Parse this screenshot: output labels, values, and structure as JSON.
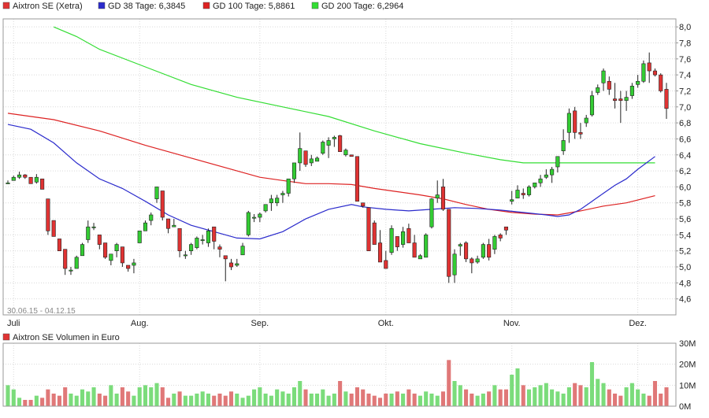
{
  "colors": {
    "up": "#33cc33",
    "down": "#e03333",
    "gd38": "#2a2acc",
    "gd100": "#dd2222",
    "gd200": "#33dd33",
    "volume_up": "#7bdc7b",
    "volume_down": "#e07878"
  },
  "legend": {
    "items": [
      {
        "label": "Aixtron SE (Xetra)",
        "color": "#e03333"
      },
      {
        "label": "GD 38 Tage: 6,3845",
        "color": "#2a2acc"
      },
      {
        "label": "GD 100 Tage: 5,8861",
        "color": "#dd2222"
      },
      {
        "label": "GD 200 Tage: 6,2964",
        "color": "#33dd33"
      }
    ],
    "volume_title": "Aixtron SE Volumen in Euro",
    "volume_color": "#e03333"
  },
  "chart_data": [
    {
      "type": "candlestick",
      "annotation": "30.06.15 - 04.12.15",
      "ylim": [
        4.4,
        8.1
      ],
      "y_ticks": [
        {
          "v": 4.6,
          "label": "4,6"
        },
        {
          "v": 4.8,
          "label": "4,8"
        },
        {
          "v": 5.0,
          "label": "5,0"
        },
        {
          "v": 5.2,
          "label": "5,2"
        },
        {
          "v": 5.4,
          "label": "5,4"
        },
        {
          "v": 5.6,
          "label": "5,6"
        },
        {
          "v": 5.8,
          "label": "5,8"
        },
        {
          "v": 6.0,
          "label": "6,0"
        },
        {
          "v": 6.2,
          "label": "6,2"
        },
        {
          "v": 6.4,
          "label": "6,4"
        },
        {
          "v": 6.6,
          "label": "6,6"
        },
        {
          "v": 6.8,
          "label": "6,8"
        },
        {
          "v": 7.0,
          "label": "7,0"
        },
        {
          "v": 7.2,
          "label": "7,2"
        },
        {
          "v": 7.4,
          "label": "7,4"
        },
        {
          "v": 7.6,
          "label": "7,6"
        },
        {
          "v": 7.8,
          "label": "7,8"
        },
        {
          "v": 8.0,
          "label": "8,0"
        }
      ],
      "x_ticks": [
        {
          "index": 1,
          "label": "Juli"
        },
        {
          "index": 23,
          "label": "Aug."
        },
        {
          "index": 44,
          "label": "Sep."
        },
        {
          "index": 66,
          "label": "Okt."
        },
        {
          "index": 88,
          "label": "Nov."
        },
        {
          "index": 110,
          "label": "Dez."
        }
      ],
      "candles": [
        [
          6.05,
          6.08,
          6.05,
          6.05
        ],
        [
          6.08,
          6.14,
          6.08,
          6.12
        ],
        [
          6.12,
          6.19,
          6.1,
          6.15
        ],
        [
          6.15,
          6.16,
          6.1,
          6.12
        ],
        [
          6.12,
          6.12,
          6.04,
          6.04
        ],
        [
          6.06,
          6.16,
          6.04,
          6.12
        ],
        [
          6.1,
          6.1,
          5.97,
          5.97
        ],
        [
          5.85,
          5.85,
          5.4,
          5.45
        ],
        [
          5.58,
          5.58,
          5.38,
          5.38
        ],
        [
          5.35,
          5.35,
          5.2,
          5.2
        ],
        [
          5.22,
          5.22,
          4.9,
          4.98
        ],
        [
          4.96,
          5.0,
          4.9,
          4.96
        ],
        [
          4.98,
          5.14,
          4.98,
          5.12
        ],
        [
          5.14,
          5.3,
          5.14,
          5.28
        ],
        [
          5.34,
          5.58,
          5.3,
          5.5
        ],
        [
          5.5,
          5.55,
          5.46,
          5.5
        ],
        [
          5.4,
          5.4,
          5.22,
          5.28
        ],
        [
          5.3,
          5.3,
          5.1,
          5.12
        ],
        [
          5.08,
          5.16,
          5.02,
          5.16
        ],
        [
          5.2,
          5.3,
          5.12,
          5.28
        ],
        [
          5.25,
          5.25,
          5.0,
          5.05
        ],
        [
          5.02,
          5.02,
          4.94,
          4.98
        ],
        [
          5.02,
          5.1,
          4.92,
          5.05
        ],
        [
          5.3,
          5.45,
          5.3,
          5.45
        ],
        [
          5.45,
          5.58,
          5.45,
          5.55
        ],
        [
          5.58,
          5.68,
          5.52,
          5.65
        ],
        [
          5.85,
          6.0,
          5.8,
          6.0
        ],
        [
          5.95,
          5.95,
          5.58,
          5.62
        ],
        [
          5.6,
          5.6,
          5.42,
          5.48
        ],
        [
          5.5,
          5.6,
          5.5,
          5.52
        ],
        [
          5.48,
          5.48,
          5.12,
          5.2
        ],
        [
          5.15,
          5.2,
          5.1,
          5.15
        ],
        [
          5.2,
          5.3,
          5.15,
          5.28
        ],
        [
          5.24,
          5.38,
          5.22,
          5.36
        ],
        [
          5.34,
          5.4,
          5.28,
          5.34
        ],
        [
          5.3,
          5.48,
          5.25,
          5.45
        ],
        [
          5.5,
          5.5,
          5.22,
          5.32
        ],
        [
          5.25,
          5.28,
          5.12,
          5.22
        ],
        [
          5.14,
          5.14,
          4.82,
          5.1
        ],
        [
          5.05,
          5.1,
          4.96,
          5.0
        ],
        [
          5.02,
          5.1,
          5.0,
          5.04
        ],
        [
          5.15,
          5.3,
          5.15,
          5.26
        ],
        [
          5.4,
          5.7,
          5.38,
          5.68
        ],
        [
          5.62,
          5.66,
          5.56,
          5.62
        ],
        [
          5.62,
          5.68,
          5.56,
          5.66
        ],
        [
          5.7,
          5.78,
          5.68,
          5.78
        ],
        [
          5.8,
          5.9,
          5.7,
          5.85
        ],
        [
          5.8,
          5.9,
          5.76,
          5.86
        ],
        [
          5.9,
          5.95,
          5.8,
          5.92
        ],
        [
          5.92,
          6.1,
          5.88,
          6.1
        ],
        [
          6.1,
          6.3,
          6.05,
          6.3
        ],
        [
          6.3,
          6.68,
          6.2,
          6.48
        ],
        [
          6.45,
          6.45,
          6.25,
          6.28
        ],
        [
          6.3,
          6.4,
          6.26,
          6.35
        ],
        [
          6.32,
          6.38,
          6.32,
          6.36
        ],
        [
          6.42,
          6.58,
          6.4,
          6.56
        ],
        [
          6.52,
          6.62,
          6.36,
          6.58
        ],
        [
          6.6,
          6.64,
          6.5,
          6.62
        ],
        [
          6.64,
          6.65,
          6.44,
          6.44
        ],
        [
          6.4,
          6.48,
          6.38,
          6.46
        ],
        [
          6.4,
          6.4,
          6.38,
          6.38
        ],
        [
          6.38,
          6.38,
          5.82,
          5.82
        ],
        [
          5.8,
          5.8,
          5.74,
          5.76
        ],
        [
          5.74,
          5.74,
          5.2,
          5.2
        ],
        [
          5.55,
          5.58,
          5.28,
          5.28
        ],
        [
          5.3,
          5.46,
          5.06,
          5.06
        ],
        [
          5.08,
          5.2,
          4.98,
          4.98
        ],
        [
          5.18,
          5.52,
          5.15,
          5.48
        ],
        [
          5.38,
          5.38,
          5.2,
          5.25
        ],
        [
          5.28,
          5.5,
          5.24,
          5.44
        ],
        [
          5.48,
          5.54,
          5.3,
          5.3
        ],
        [
          5.3,
          5.4,
          5.12,
          5.12
        ],
        [
          5.1,
          5.16,
          5.1,
          5.14
        ],
        [
          5.12,
          5.42,
          5.12,
          5.4
        ],
        [
          5.5,
          5.86,
          5.48,
          5.85
        ],
        [
          5.86,
          6.08,
          5.8,
          5.9
        ],
        [
          6.0,
          6.1,
          5.7,
          5.72
        ],
        [
          5.72,
          5.72,
          4.8,
          4.88
        ],
        [
          4.9,
          5.22,
          4.8,
          5.16
        ],
        [
          5.26,
          5.3,
          5.14,
          5.28
        ],
        [
          5.3,
          5.32,
          5.06,
          5.1
        ],
        [
          5.1,
          5.12,
          4.92,
          5.05
        ],
        [
          5.06,
          5.14,
          5.04,
          5.1
        ],
        [
          5.12,
          5.3,
          5.1,
          5.28
        ],
        [
          5.28,
          5.35,
          5.08,
          5.12
        ],
        [
          5.22,
          5.4,
          5.16,
          5.38
        ],
        [
          5.4,
          5.42,
          5.32,
          5.36
        ],
        [
          5.5,
          5.5,
          5.4,
          5.46
        ],
        [
          5.82,
          5.95,
          5.78,
          5.84
        ],
        [
          5.86,
          6.02,
          5.86,
          5.96
        ],
        [
          5.92,
          5.98,
          5.85,
          5.9
        ],
        [
          5.9,
          6.02,
          5.88,
          6.0
        ],
        [
          6.0,
          6.05,
          5.98,
          6.05
        ],
        [
          6.05,
          6.15,
          6.0,
          6.1
        ],
        [
          6.12,
          6.22,
          6.1,
          6.15
        ],
        [
          6.15,
          6.25,
          6.05,
          6.22
        ],
        [
          6.25,
          6.38,
          6.18,
          6.38
        ],
        [
          6.45,
          6.72,
          6.4,
          6.58
        ],
        [
          6.68,
          6.98,
          6.55,
          6.92
        ],
        [
          6.95,
          7.0,
          6.6,
          6.68
        ],
        [
          6.68,
          6.8,
          6.6,
          6.66
        ],
        [
          6.8,
          6.9,
          6.75,
          6.86
        ],
        [
          6.9,
          7.2,
          6.88,
          7.14
        ],
        [
          7.18,
          7.28,
          7.15,
          7.24
        ],
        [
          7.3,
          7.48,
          7.2,
          7.45
        ],
        [
          7.32,
          7.38,
          7.15,
          7.22
        ],
        [
          7.1,
          7.3,
          6.98,
          7.08
        ],
        [
          7.1,
          7.2,
          6.8,
          7.08
        ],
        [
          7.08,
          7.2,
          6.95,
          7.12
        ],
        [
          7.14,
          7.3,
          7.1,
          7.26
        ],
        [
          7.28,
          7.4,
          7.24,
          7.32
        ],
        [
          7.32,
          7.58,
          7.3,
          7.54
        ],
        [
          7.55,
          7.68,
          7.3,
          7.45
        ],
        [
          7.45,
          7.48,
          7.38,
          7.4
        ],
        [
          7.4,
          7.42,
          7.18,
          7.2
        ],
        [
          7.22,
          7.3,
          6.85,
          6.98
        ]
      ],
      "moving_averages": {
        "gd38": [
          [
            0,
            6.78
          ],
          [
            4,
            6.72
          ],
          [
            8,
            6.55
          ],
          [
            12,
            6.3
          ],
          [
            16,
            6.1
          ],
          [
            20,
            5.98
          ],
          [
            24,
            5.82
          ],
          [
            28,
            5.65
          ],
          [
            32,
            5.52
          ],
          [
            36,
            5.44
          ],
          [
            40,
            5.36
          ],
          [
            44,
            5.35
          ],
          [
            48,
            5.44
          ],
          [
            52,
            5.6
          ],
          [
            56,
            5.72
          ],
          [
            60,
            5.78
          ],
          [
            62,
            5.75
          ],
          [
            66,
            5.72
          ],
          [
            70,
            5.7
          ],
          [
            74,
            5.72
          ],
          [
            78,
            5.74
          ],
          [
            82,
            5.73
          ],
          [
            86,
            5.71
          ],
          [
            90,
            5.68
          ],
          [
            94,
            5.65
          ],
          [
            96,
            5.63
          ],
          [
            98,
            5.65
          ],
          [
            100,
            5.72
          ],
          [
            102,
            5.82
          ],
          [
            104,
            5.92
          ],
          [
            106,
            6.02
          ],
          [
            108,
            6.1
          ],
          [
            110,
            6.22
          ],
          [
            113,
            6.38
          ]
        ],
        "gd100": [
          [
            0,
            6.92
          ],
          [
            8,
            6.84
          ],
          [
            16,
            6.7
          ],
          [
            24,
            6.52
          ],
          [
            32,
            6.36
          ],
          [
            40,
            6.2
          ],
          [
            44,
            6.12
          ],
          [
            48,
            6.08
          ],
          [
            52,
            6.04
          ],
          [
            56,
            6.04
          ],
          [
            60,
            6.03
          ],
          [
            64,
            5.98
          ],
          [
            68,
            5.94
          ],
          [
            72,
            5.9
          ],
          [
            76,
            5.85
          ],
          [
            80,
            5.78
          ],
          [
            84,
            5.72
          ],
          [
            88,
            5.68
          ],
          [
            92,
            5.66
          ],
          [
            96,
            5.65
          ],
          [
            100,
            5.7
          ],
          [
            104,
            5.76
          ],
          [
            108,
            5.8
          ],
          [
            113,
            5.89
          ]
        ],
        "gd200": [
          [
            8,
            8.0
          ],
          [
            12,
            7.88
          ],
          [
            16,
            7.72
          ],
          [
            24,
            7.5
          ],
          [
            32,
            7.28
          ],
          [
            40,
            7.12
          ],
          [
            48,
            7.0
          ],
          [
            56,
            6.88
          ],
          [
            64,
            6.7
          ],
          [
            72,
            6.54
          ],
          [
            80,
            6.42
          ],
          [
            86,
            6.34
          ],
          [
            90,
            6.3
          ],
          [
            96,
            6.3
          ],
          [
            104,
            6.3
          ],
          [
            113,
            6.3
          ]
        ]
      }
    },
    {
      "type": "bar",
      "ylim": [
        0,
        30
      ],
      "y_ticks": [
        {
          "v": 0,
          "label": "0M"
        },
        {
          "v": 10,
          "label": "10M"
        },
        {
          "v": 20,
          "label": "20M"
        },
        {
          "v": 30,
          "label": "30M"
        }
      ],
      "values": [
        10,
        8,
        4,
        3,
        3,
        5,
        4,
        8,
        6,
        5,
        9,
        6,
        5,
        8,
        7,
        9,
        6,
        5,
        10,
        6,
        9,
        7,
        5,
        9,
        10,
        9,
        11,
        9,
        4,
        6,
        7,
        5,
        5,
        6,
        7,
        6,
        5,
        6,
        5,
        7,
        6,
        4,
        5,
        8,
        9,
        6,
        5,
        8,
        7,
        6,
        9,
        12,
        8,
        6,
        6,
        8,
        5,
        6,
        12,
        7,
        6,
        9,
        8,
        6,
        5,
        4,
        6,
        6,
        7,
        6,
        8,
        6,
        5,
        7,
        6,
        5,
        7,
        22,
        12,
        10,
        8,
        6,
        5,
        6,
        7,
        10,
        8,
        8,
        15,
        18,
        10,
        8,
        9,
        10,
        11,
        8,
        7,
        6,
        9,
        11,
        10,
        9,
        21,
        13,
        11,
        8,
        6,
        5,
        9,
        11,
        8,
        6,
        5,
        12,
        6,
        9
      ]
    }
  ]
}
